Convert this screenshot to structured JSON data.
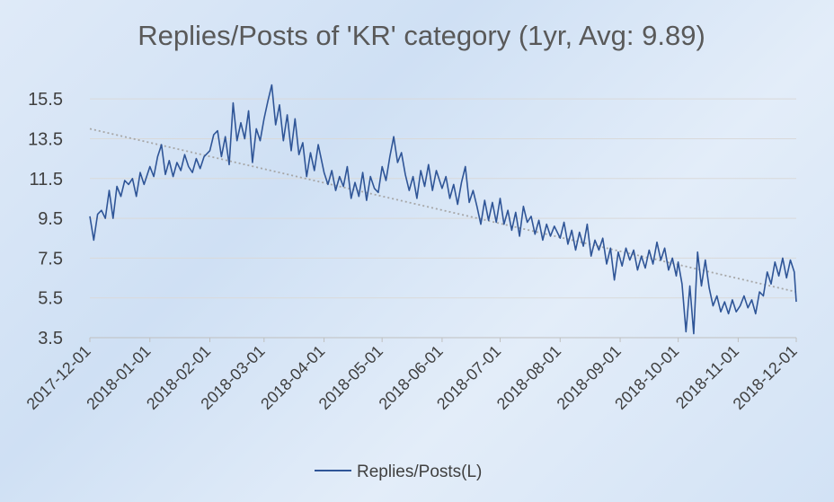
{
  "chart_data": {
    "type": "line",
    "title": "Replies/Posts of 'KR' category (1yr, Avg: 9.89)",
    "xlabel": "",
    "ylabel": "",
    "x_start": "2017-12-01",
    "x_end": "2018-12-01",
    "x_tick_labels": [
      "2017-12-01",
      "2018-01-01",
      "2018-02-01",
      "2018-03-01",
      "2018-04-01",
      "2018-05-01",
      "2018-06-01",
      "2018-07-01",
      "2018-08-01",
      "2018-09-01",
      "2018-10-01",
      "2018-11-01",
      "2018-12-01"
    ],
    "y_tick_labels": [
      "3.5",
      "5.5",
      "7.5",
      "9.5",
      "11.5",
      "13.5",
      "15.5"
    ],
    "ylim": [
      3.5,
      16.5
    ],
    "grid": "horizontal",
    "legend_position": "bottom",
    "series": [
      {
        "name": "Replies/Posts(L)",
        "color": "#2f5597",
        "points": [
          [
            "2017-12-01",
            9.6
          ],
          [
            "2017-12-03",
            8.4
          ],
          [
            "2017-12-05",
            9.7
          ],
          [
            "2017-12-07",
            9.9
          ],
          [
            "2017-12-09",
            9.5
          ],
          [
            "2017-12-11",
            10.9
          ],
          [
            "2017-12-13",
            9.5
          ],
          [
            "2017-12-15",
            11.1
          ],
          [
            "2017-12-17",
            10.6
          ],
          [
            "2017-12-19",
            11.4
          ],
          [
            "2017-12-21",
            11.2
          ],
          [
            "2017-12-23",
            11.5
          ],
          [
            "2017-12-25",
            10.6
          ],
          [
            "2017-12-27",
            11.8
          ],
          [
            "2017-12-29",
            11.2
          ],
          [
            "2018-01-01",
            12.1
          ],
          [
            "2018-01-03",
            11.6
          ],
          [
            "2018-01-05",
            12.6
          ],
          [
            "2018-01-07",
            13.2
          ],
          [
            "2018-01-09",
            11.7
          ],
          [
            "2018-01-11",
            12.4
          ],
          [
            "2018-01-13",
            11.6
          ],
          [
            "2018-01-15",
            12.3
          ],
          [
            "2018-01-17",
            11.9
          ],
          [
            "2018-01-19",
            12.7
          ],
          [
            "2018-01-21",
            12.1
          ],
          [
            "2018-01-23",
            11.8
          ],
          [
            "2018-01-25",
            12.5
          ],
          [
            "2018-01-27",
            12.0
          ],
          [
            "2018-01-29",
            12.6
          ],
          [
            "2018-02-01",
            12.9
          ],
          [
            "2018-02-03",
            13.7
          ],
          [
            "2018-02-05",
            13.9
          ],
          [
            "2018-02-07",
            12.6
          ],
          [
            "2018-02-09",
            13.6
          ],
          [
            "2018-02-11",
            12.2
          ],
          [
            "2018-02-13",
            15.3
          ],
          [
            "2018-02-15",
            13.4
          ],
          [
            "2018-02-17",
            14.3
          ],
          [
            "2018-02-19",
            13.5
          ],
          [
            "2018-02-21",
            14.9
          ],
          [
            "2018-02-23",
            12.3
          ],
          [
            "2018-02-25",
            14.0
          ],
          [
            "2018-02-27",
            13.4
          ],
          [
            "2018-03-01",
            14.5
          ],
          [
            "2018-03-03",
            15.4
          ],
          [
            "2018-03-05",
            16.2
          ],
          [
            "2018-03-07",
            14.2
          ],
          [
            "2018-03-09",
            15.2
          ],
          [
            "2018-03-11",
            13.4
          ],
          [
            "2018-03-13",
            14.7
          ],
          [
            "2018-03-15",
            12.9
          ],
          [
            "2018-03-17",
            14.5
          ],
          [
            "2018-03-19",
            12.7
          ],
          [
            "2018-03-21",
            13.3
          ],
          [
            "2018-03-23",
            11.6
          ],
          [
            "2018-03-25",
            12.8
          ],
          [
            "2018-03-27",
            11.9
          ],
          [
            "2018-03-29",
            13.2
          ],
          [
            "2018-04-01",
            11.8
          ],
          [
            "2018-04-03",
            11.2
          ],
          [
            "2018-04-05",
            11.9
          ],
          [
            "2018-04-07",
            10.9
          ],
          [
            "2018-04-09",
            11.6
          ],
          [
            "2018-04-11",
            11.1
          ],
          [
            "2018-04-13",
            12.1
          ],
          [
            "2018-04-15",
            10.5
          ],
          [
            "2018-04-17",
            11.3
          ],
          [
            "2018-04-19",
            10.6
          ],
          [
            "2018-04-21",
            11.8
          ],
          [
            "2018-04-23",
            10.4
          ],
          [
            "2018-04-25",
            11.6
          ],
          [
            "2018-04-27",
            11.0
          ],
          [
            "2018-04-29",
            10.8
          ],
          [
            "2018-05-01",
            12.1
          ],
          [
            "2018-05-03",
            11.4
          ],
          [
            "2018-05-05",
            12.6
          ],
          [
            "2018-05-07",
            13.6
          ],
          [
            "2018-05-09",
            12.3
          ],
          [
            "2018-05-11",
            12.8
          ],
          [
            "2018-05-13",
            11.7
          ],
          [
            "2018-05-15",
            10.9
          ],
          [
            "2018-05-17",
            11.6
          ],
          [
            "2018-05-19",
            10.5
          ],
          [
            "2018-05-21",
            11.9
          ],
          [
            "2018-05-23",
            11.1
          ],
          [
            "2018-05-25",
            12.2
          ],
          [
            "2018-05-27",
            10.9
          ],
          [
            "2018-05-29",
            11.9
          ],
          [
            "2018-06-01",
            11.0
          ],
          [
            "2018-06-03",
            11.6
          ],
          [
            "2018-06-05",
            10.5
          ],
          [
            "2018-06-07",
            11.2
          ],
          [
            "2018-06-09",
            10.2
          ],
          [
            "2018-06-11",
            11.3
          ],
          [
            "2018-06-13",
            12.1
          ],
          [
            "2018-06-15",
            10.3
          ],
          [
            "2018-06-17",
            10.9
          ],
          [
            "2018-06-19",
            10.1
          ],
          [
            "2018-06-21",
            9.2
          ],
          [
            "2018-06-23",
            10.4
          ],
          [
            "2018-06-25",
            9.4
          ],
          [
            "2018-06-27",
            10.3
          ],
          [
            "2018-06-29",
            9.3
          ],
          [
            "2018-07-01",
            10.5
          ],
          [
            "2018-07-03",
            9.2
          ],
          [
            "2018-07-05",
            9.9
          ],
          [
            "2018-07-07",
            8.9
          ],
          [
            "2018-07-09",
            9.8
          ],
          [
            "2018-07-11",
            8.6
          ],
          [
            "2018-07-13",
            10.1
          ],
          [
            "2018-07-15",
            9.3
          ],
          [
            "2018-07-17",
            9.6
          ],
          [
            "2018-07-19",
            8.7
          ],
          [
            "2018-07-21",
            9.4
          ],
          [
            "2018-07-23",
            8.4
          ],
          [
            "2018-07-25",
            9.2
          ],
          [
            "2018-07-27",
            8.6
          ],
          [
            "2018-07-29",
            9.1
          ],
          [
            "2018-08-01",
            8.5
          ],
          [
            "2018-08-03",
            9.3
          ],
          [
            "2018-08-05",
            8.2
          ],
          [
            "2018-08-07",
            8.9
          ],
          [
            "2018-08-09",
            7.9
          ],
          [
            "2018-08-11",
            8.8
          ],
          [
            "2018-08-13",
            8.1
          ],
          [
            "2018-08-15",
            9.2
          ],
          [
            "2018-08-17",
            7.6
          ],
          [
            "2018-08-19",
            8.4
          ],
          [
            "2018-08-21",
            7.9
          ],
          [
            "2018-08-23",
            8.5
          ],
          [
            "2018-08-25",
            7.2
          ],
          [
            "2018-08-27",
            8.0
          ],
          [
            "2018-08-29",
            6.4
          ],
          [
            "2018-08-31",
            7.8
          ],
          [
            "2018-09-02",
            7.1
          ],
          [
            "2018-09-04",
            8.0
          ],
          [
            "2018-09-06",
            7.4
          ],
          [
            "2018-09-08",
            7.9
          ],
          [
            "2018-09-10",
            6.9
          ],
          [
            "2018-09-12",
            7.6
          ],
          [
            "2018-09-14",
            7.0
          ],
          [
            "2018-09-16",
            7.9
          ],
          [
            "2018-09-18",
            7.2
          ],
          [
            "2018-09-20",
            8.3
          ],
          [
            "2018-09-22",
            7.4
          ],
          [
            "2018-09-24",
            8.0
          ],
          [
            "2018-09-26",
            6.9
          ],
          [
            "2018-09-28",
            7.5
          ],
          [
            "2018-09-30",
            6.6
          ],
          [
            "2018-10-01",
            7.3
          ],
          [
            "2018-10-03",
            6.2
          ],
          [
            "2018-10-05",
            3.8
          ],
          [
            "2018-10-07",
            6.1
          ],
          [
            "2018-10-09",
            3.7
          ],
          [
            "2018-10-11",
            7.8
          ],
          [
            "2018-10-13",
            6.1
          ],
          [
            "2018-10-15",
            7.4
          ],
          [
            "2018-10-17",
            6.0
          ],
          [
            "2018-10-19",
            5.1
          ],
          [
            "2018-10-21",
            5.6
          ],
          [
            "2018-10-23",
            4.8
          ],
          [
            "2018-10-25",
            5.3
          ],
          [
            "2018-10-27",
            4.7
          ],
          [
            "2018-10-29",
            5.4
          ],
          [
            "2018-10-31",
            4.8
          ],
          [
            "2018-11-02",
            5.1
          ],
          [
            "2018-11-04",
            5.6
          ],
          [
            "2018-11-06",
            5.0
          ],
          [
            "2018-11-08",
            5.4
          ],
          [
            "2018-11-10",
            4.7
          ],
          [
            "2018-11-12",
            5.8
          ],
          [
            "2018-11-14",
            5.6
          ],
          [
            "2018-11-16",
            6.8
          ],
          [
            "2018-11-18",
            6.2
          ],
          [
            "2018-11-20",
            7.3
          ],
          [
            "2018-11-22",
            6.6
          ],
          [
            "2018-11-24",
            7.5
          ],
          [
            "2018-11-26",
            6.5
          ],
          [
            "2018-11-28",
            7.4
          ],
          [
            "2018-11-30",
            6.8
          ],
          [
            "2018-12-01",
            5.3
          ]
        ]
      }
    ],
    "trendline": {
      "style": "dotted",
      "color": "#a6a6a6",
      "from": [
        "2017-12-01",
        14.0
      ],
      "to": [
        "2018-12-01",
        5.8
      ]
    }
  }
}
